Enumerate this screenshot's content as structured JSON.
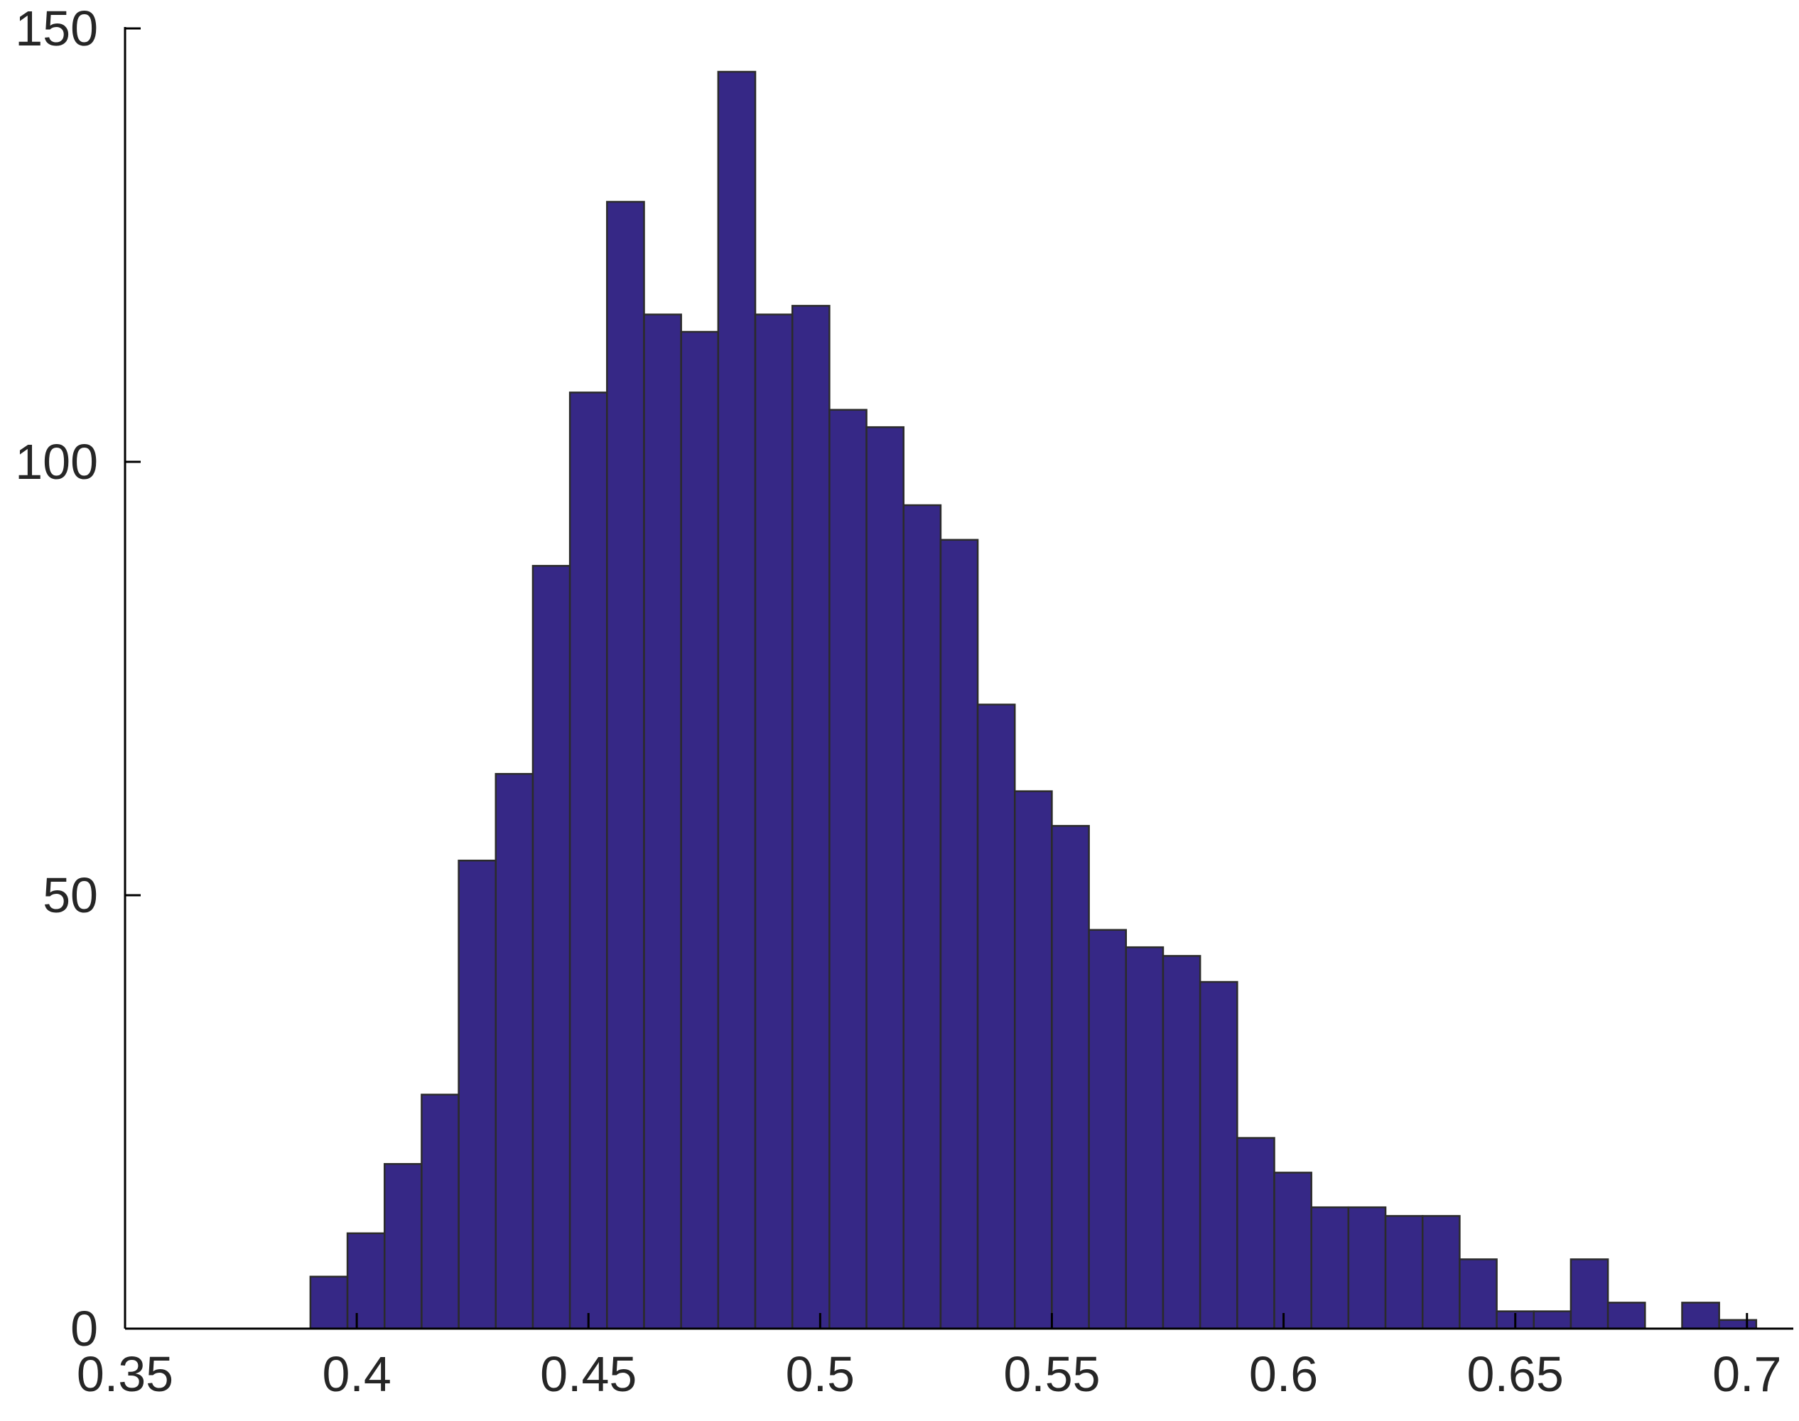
{
  "chart_data": {
    "type": "bar",
    "subtype": "histogram",
    "title": "",
    "xlabel": "",
    "ylabel": "",
    "xlim": [
      0.35,
      0.71
    ],
    "ylim": [
      0,
      150
    ],
    "bin_width": 0.008,
    "x_ticks": [
      {
        "value": 0.35,
        "label": "0.35"
      },
      {
        "value": 0.4,
        "label": "0.4"
      },
      {
        "value": 0.45,
        "label": "0.45"
      },
      {
        "value": 0.5,
        "label": "0.5"
      },
      {
        "value": 0.55,
        "label": "0.55"
      },
      {
        "value": 0.6,
        "label": "0.6"
      },
      {
        "value": 0.65,
        "label": "0.65"
      },
      {
        "value": 0.7,
        "label": "0.7"
      }
    ],
    "y_ticks": [
      {
        "value": 0,
        "label": "0"
      },
      {
        "value": 50,
        "label": "50"
      },
      {
        "value": 100,
        "label": "100"
      },
      {
        "value": 150,
        "label": "150"
      }
    ],
    "bin_starts": [
      0.39,
      0.398,
      0.406,
      0.414,
      0.422,
      0.43,
      0.438,
      0.446,
      0.454,
      0.462,
      0.47,
      0.478,
      0.486,
      0.494,
      0.502,
      0.51,
      0.518,
      0.526,
      0.534,
      0.542,
      0.55,
      0.558,
      0.566,
      0.574,
      0.582,
      0.59,
      0.598,
      0.606,
      0.614,
      0.622,
      0.63,
      0.638,
      0.646,
      0.654,
      0.662,
      0.67,
      0.678,
      0.686,
      0.694
    ],
    "values": [
      6,
      11,
      19,
      27,
      54,
      64,
      88,
      108,
      130,
      117,
      115,
      145,
      117,
      118,
      106,
      104,
      95,
      91,
      72,
      62,
      58,
      46,
      44,
      43,
      40,
      22,
      18,
      14,
      14,
      13,
      13,
      8,
      2,
      2,
      8,
      3,
      0,
      3,
      1
    ],
    "grid": false,
    "legend": "none",
    "colors": {
      "bar_fill": "#362886",
      "bar_edge": "#2b2b2b",
      "axis": "#000000",
      "text": "#262626",
      "background": "#ffffff"
    }
  }
}
